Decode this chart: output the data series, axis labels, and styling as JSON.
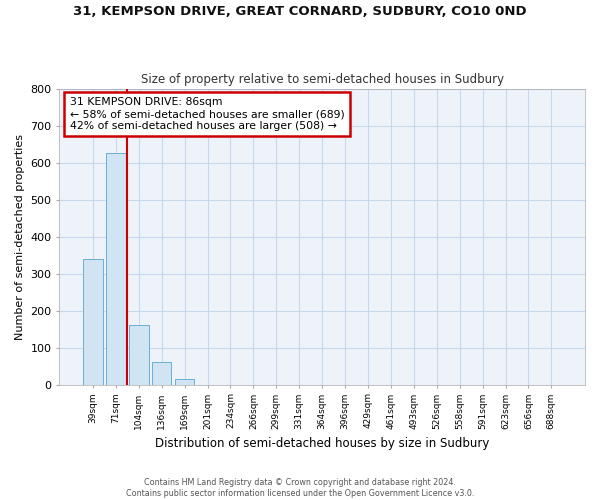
{
  "title": "31, KEMPSON DRIVE, GREAT CORNARD, SUDBURY, CO10 0ND",
  "subtitle": "Size of property relative to semi-detached houses in Sudbury",
  "xlabel": "Distribution of semi-detached houses by size in Sudbury",
  "ylabel": "Number of semi-detached properties",
  "footer_line1": "Contains HM Land Registry data © Crown copyright and database right 2024.",
  "footer_line2": "Contains public sector information licensed under the Open Government Licence v3.0.",
  "categories": [
    "39sqm",
    "71sqm",
    "104sqm",
    "136sqm",
    "169sqm",
    "201sqm",
    "234sqm",
    "266sqm",
    "299sqm",
    "331sqm",
    "364sqm",
    "396sqm",
    "429sqm",
    "461sqm",
    "493sqm",
    "526sqm",
    "558sqm",
    "591sqm",
    "623sqm",
    "656sqm",
    "688sqm"
  ],
  "values": [
    340,
    625,
    160,
    60,
    15,
    0,
    0,
    0,
    0,
    0,
    0,
    0,
    0,
    0,
    0,
    0,
    0,
    0,
    0,
    0,
    0
  ],
  "bar_color": "#d0e4f4",
  "bar_edge_color": "#6aafd6",
  "ylim": [
    0,
    800
  ],
  "yticks": [
    0,
    100,
    200,
    300,
    400,
    500,
    600,
    700,
    800
  ],
  "annotation_text_line1": "31 KEMPSON DRIVE: 86sqm",
  "annotation_text_line2": "← 58% of semi-detached houses are smaller (689)",
  "annotation_text_line3": "42% of semi-detached houses are larger (508) →",
  "vline_x_index": 1.5,
  "annotation_box_color": "#ffffff",
  "annotation_border_color": "#cc0000",
  "vline_color": "#cc0000",
  "bg_color": "#ffffff",
  "plot_bg_color": "#eef3fa",
  "grid_color": "#c8d8ec"
}
